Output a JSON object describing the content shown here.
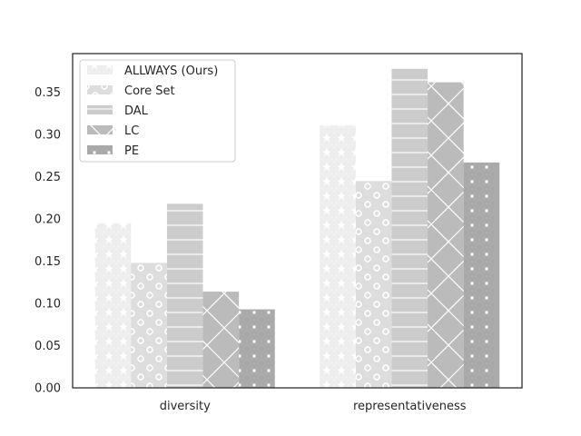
{
  "chart_data": {
    "type": "bar",
    "categories": [
      "diversity",
      "representativeness"
    ],
    "series": [
      {
        "name": "ALLWAYS (Ours)",
        "values": [
          0.195,
          0.311
        ],
        "color": "#eeeeee",
        "pattern": "star"
      },
      {
        "name": "Core Set",
        "values": [
          0.148,
          0.245
        ],
        "color": "#dddddd",
        "pattern": "circle"
      },
      {
        "name": "DAL",
        "values": [
          0.218,
          0.378
        ],
        "color": "#cccccc",
        "pattern": "hline"
      },
      {
        "name": "LC",
        "values": [
          0.114,
          0.362
        ],
        "color": "#bbbbbb",
        "pattern": "cross"
      },
      {
        "name": "PE",
        "values": [
          0.093,
          0.267
        ],
        "color": "#aaaaaa",
        "pattern": "dot"
      }
    ],
    "title": "",
    "xlabel": "",
    "ylabel": "",
    "ylim": [
      0,
      0.396
    ],
    "yticks": [
      "0.00",
      "0.05",
      "0.10",
      "0.15",
      "0.20",
      "0.25",
      "0.30",
      "0.35"
    ],
    "grid": false,
    "legend": "top-left"
  }
}
